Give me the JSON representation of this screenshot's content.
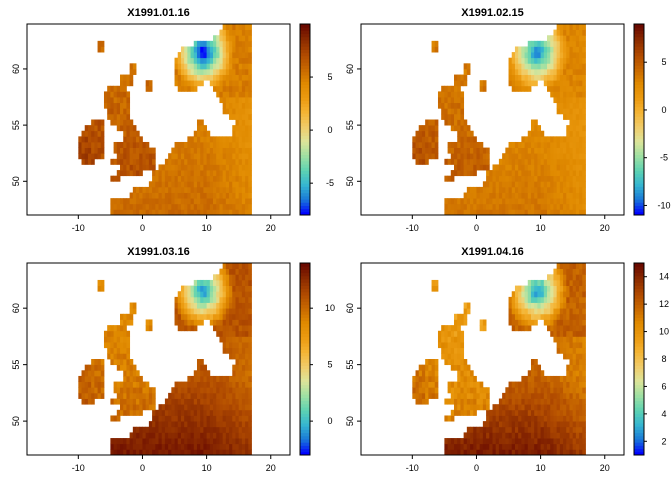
{
  "figure": {
    "palette": [
      "#0000ff",
      "#1a7ad8",
      "#35b6d0",
      "#5fd3b1",
      "#9fe0a3",
      "#dde59a",
      "#f0cc6a",
      "#f4b434",
      "#eb9a10",
      "#e08a00",
      "#c86800",
      "#b04a00",
      "#8c2c00",
      "#6a0a00"
    ]
  },
  "chart_data": [
    {
      "type": "heatmap",
      "title": "X1991.01.16",
      "xlim": [
        -18,
        23
      ],
      "ylim": [
        47,
        64
      ],
      "xticks": [
        -10,
        0,
        10,
        20
      ],
      "yticks": [
        50,
        55,
        60
      ],
      "legend": {
        "min": -8,
        "max": 10,
        "ticks": [
          -5,
          0,
          5
        ]
      },
      "value_range": {
        "cold": -9,
        "sea": 5,
        "land": 7
      },
      "grid": false,
      "legend_position": "right"
    },
    {
      "type": "heatmap",
      "title": "X1991.02.15",
      "xlim": [
        -18,
        23
      ],
      "ylim": [
        47,
        64
      ],
      "xticks": [
        -10,
        0,
        10,
        20
      ],
      "yticks": [
        50,
        55,
        60
      ],
      "legend": {
        "min": -11,
        "max": 9,
        "ticks": [
          -10,
          -5,
          0,
          5
        ]
      },
      "value_range": {
        "cold": -10,
        "sea": 3,
        "land": 5
      },
      "grid": false,
      "legend_position": "right"
    },
    {
      "type": "heatmap",
      "title": "X1991.03.16",
      "xlim": [
        -18,
        23
      ],
      "ylim": [
        47,
        64
      ],
      "xticks": [
        -10,
        0,
        10,
        20
      ],
      "yticks": [
        50,
        55,
        60
      ],
      "legend": {
        "min": -3,
        "max": 14,
        "ticks": [
          0,
          5,
          10
        ]
      },
      "value_range": {
        "cold": -2,
        "sea": 11,
        "land": 10
      },
      "grid": false,
      "legend_position": "right"
    },
    {
      "type": "heatmap",
      "title": "X1991.04.16",
      "xlim": [
        -18,
        23
      ],
      "ylim": [
        47,
        64
      ],
      "xticks": [
        -10,
        0,
        10,
        20
      ],
      "yticks": [
        50,
        55,
        60
      ],
      "legend": {
        "min": 1,
        "max": 15,
        "ticks": [
          2,
          4,
          6,
          8,
          10,
          12,
          14
        ]
      },
      "value_range": {
        "cold": 2,
        "sea": 12,
        "land": 11
      },
      "grid": false,
      "legend_position": "right"
    }
  ]
}
